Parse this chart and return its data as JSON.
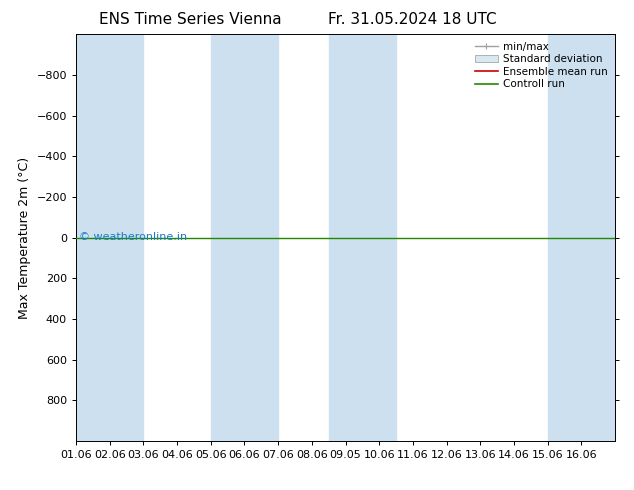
{
  "title_left": "ENS Time Series Vienna",
  "title_right": "Fr. 31.05.2024 18 UTC",
  "ylabel": "Max Temperature 2m (°C)",
  "ylim": [
    1000,
    -1000
  ],
  "yticks": [
    -800,
    -600,
    -400,
    -200,
    0,
    200,
    400,
    600,
    800
  ],
  "xlim": [
    0,
    16
  ],
  "xtick_labels": [
    "01.06",
    "02.06",
    "03.06",
    "04.06",
    "05.06",
    "06.06",
    "07.06",
    "08.06",
    "09.05",
    "10.06",
    "11.06",
    "12.06",
    "13.06",
    "14.06",
    "15.06",
    "16.06"
  ],
  "shaded_bands": [
    [
      0,
      2
    ],
    [
      4,
      6
    ],
    [
      7.5,
      9.5
    ],
    [
      14,
      16
    ]
  ],
  "band_color": "#cce0f0",
  "green_line_y": 0,
  "watermark": "© weatheronline.in",
  "watermark_color": "#1a7bc4",
  "bg_color": "#ffffff",
  "plot_bg_color": "#ffffff",
  "legend_items": [
    "min/max",
    "Standard deviation",
    "Ensemble mean run",
    "Controll run"
  ],
  "legend_colors": [
    "#a0a0a0",
    "#c8d8e8",
    "#cc0000",
    "#228800"
  ],
  "title_fontsize": 11,
  "axis_label_fontsize": 9,
  "tick_fontsize": 8
}
